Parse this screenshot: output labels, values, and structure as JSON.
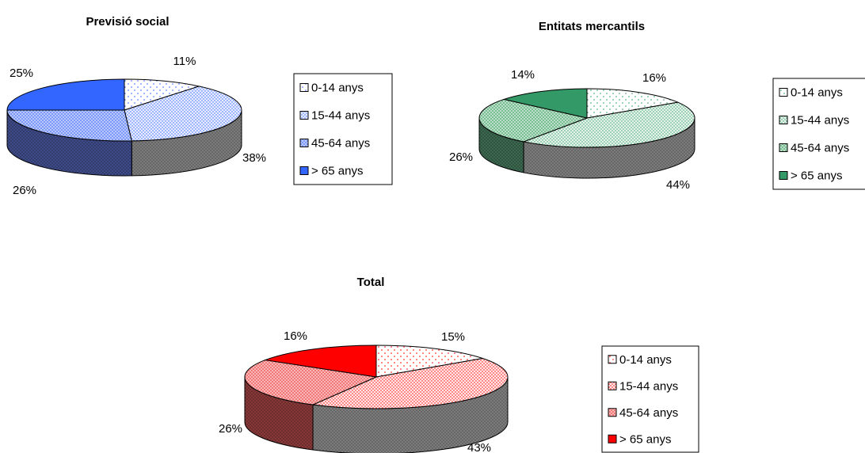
{
  "chart_data": [
    {
      "type": "pie",
      "title": "Previsió social",
      "categories": [
        "0-14 anys",
        "15-44 anys",
        "45-64 anys",
        "> 65 anys"
      ],
      "values": [
        11,
        38,
        26,
        25
      ],
      "value_labels": [
        "11%",
        "38%",
        "26%",
        "25%"
      ],
      "colors": [
        "#ffffff",
        "#e8ecff",
        "#6f8ef5",
        "#3366ff"
      ],
      "side_color": "#3f4d8c",
      "pattern_color": "#3366ff",
      "legend_placement": "right"
    },
    {
      "type": "pie",
      "title": "Entitats mercantils",
      "categories": [
        "0-14 anys",
        "15-44 anys",
        "45-64 anys",
        "> 65 anys"
      ],
      "values": [
        16,
        44,
        26,
        14
      ],
      "value_labels": [
        "16%",
        "44%",
        "26%",
        "14%"
      ],
      "colors": [
        "#ffffff",
        "#e4f4ea",
        "#6fb98a",
        "#339966"
      ],
      "side_color": "#3d6b51",
      "pattern_color": "#339966",
      "legend_placement": "right"
    },
    {
      "type": "pie",
      "title": "Total",
      "categories": [
        "0-14 anys",
        "15-44 anys",
        "45-64 anys",
        "> 65 anys"
      ],
      "values": [
        15,
        43,
        26,
        16
      ],
      "value_labels": [
        "15%",
        "43%",
        "26%",
        "16%"
      ],
      "colors": [
        "#ffffff",
        "#ffe6e6",
        "#f06a6a",
        "#ff0000"
      ],
      "side_color": "#8c3a3a",
      "pattern_color": "#ff0000",
      "legend_placement": "right"
    }
  ]
}
